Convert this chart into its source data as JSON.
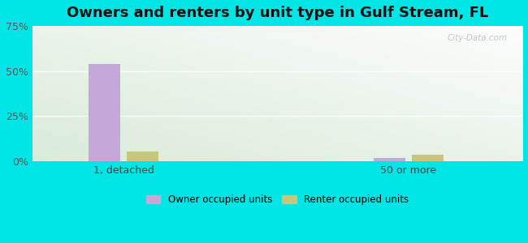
{
  "title": "Owners and renters by unit type in Gulf Stream, FL",
  "categories": [
    "1, detached",
    "50 or more"
  ],
  "owner_values": [
    54.0,
    2.0
  ],
  "renter_values": [
    5.5,
    3.5
  ],
  "owner_color": "#c4a8d8",
  "renter_color": "#c5c87a",
  "ylim": [
    0,
    75
  ],
  "yticks": [
    0,
    25,
    50,
    75
  ],
  "yticklabels": [
    "0%",
    "25%",
    "50%",
    "75%"
  ],
  "background_outer": "#00e5e5",
  "legend_owner": "Owner occupied units",
  "legend_renter": "Renter occupied units",
  "bar_width": 0.28,
  "group_positions": [
    1.0,
    3.5
  ],
  "xlim": [
    0.2,
    4.5
  ],
  "watermark": "City-Data.com",
  "title_fontsize": 13,
  "grid_color": "#ccddcc",
  "bg_color_left": "#d8eecc",
  "bg_color_right": "#eaf5f0",
  "bg_color_top": "#f0f8f8"
}
